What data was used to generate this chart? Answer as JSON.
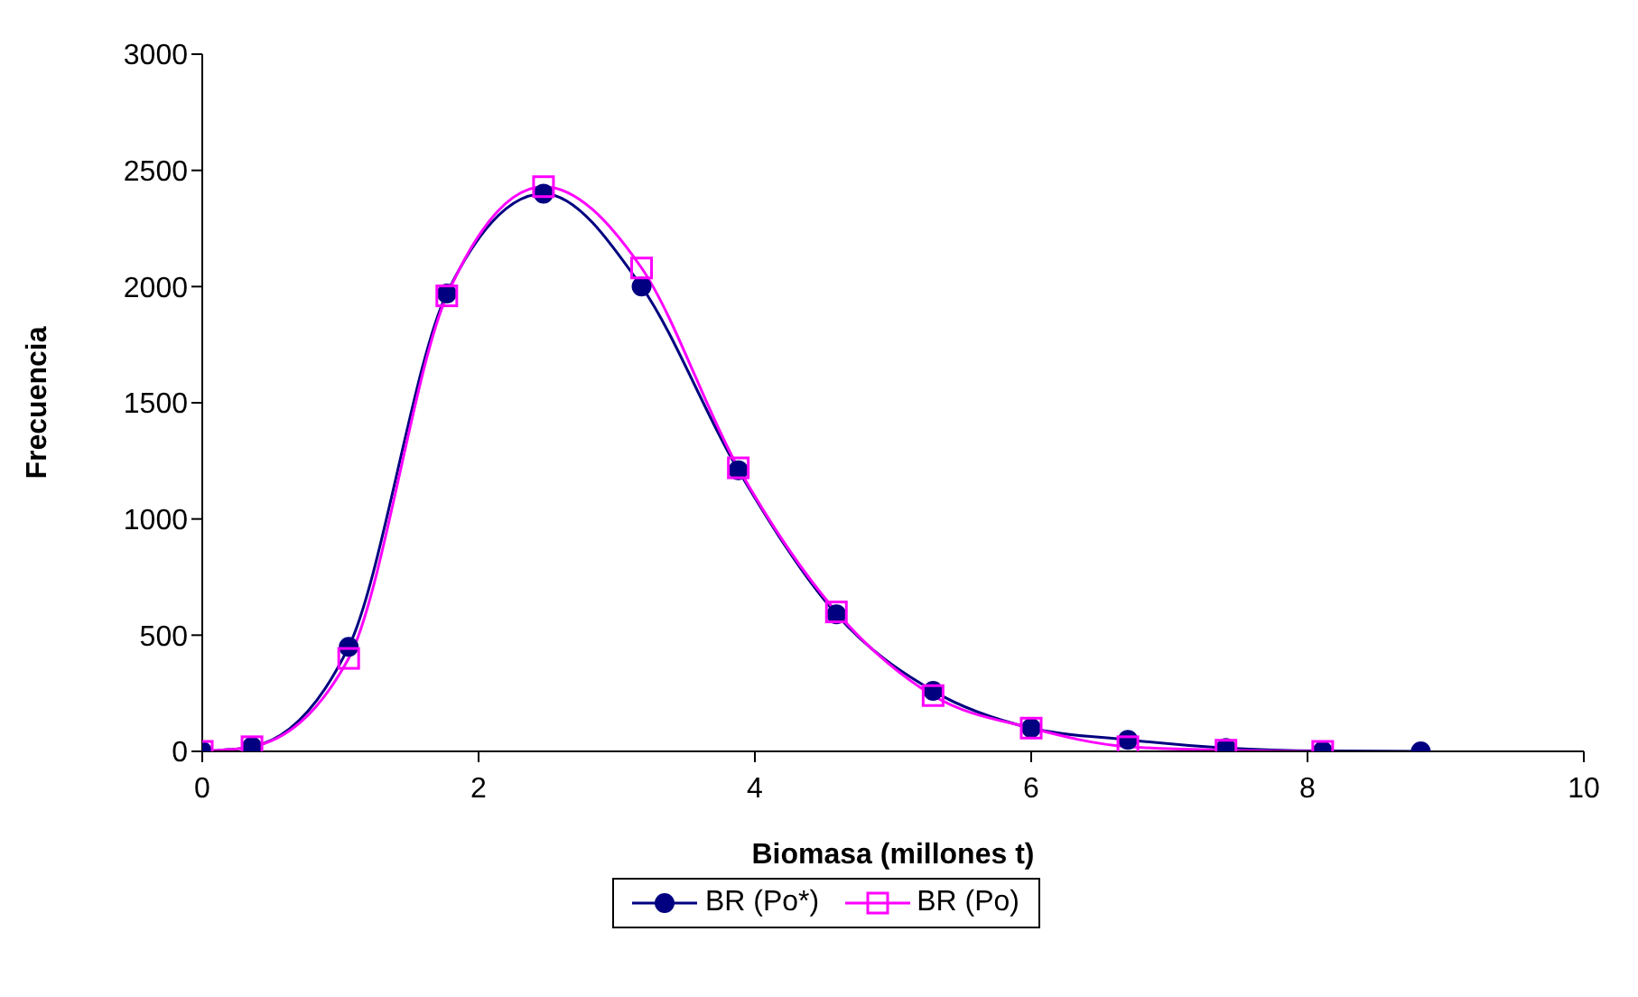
{
  "chart_data": {
    "type": "line",
    "xlabel": "Biomasa (millones t)",
    "ylabel": "Frecuencia",
    "xlim": [
      0,
      10
    ],
    "xticks": [
      0,
      2,
      4,
      6,
      8,
      10
    ],
    "ylim": [
      0,
      3000
    ],
    "yticks": [
      0,
      500,
      1000,
      1500,
      2000,
      2500,
      3000
    ],
    "grid": false,
    "legend": "bottom",
    "line_style": "solid",
    "series": [
      {
        "name": "BR (Po*)",
        "color": "#000080",
        "marker": "circle",
        "x": [
          0,
          0.36,
          1.06,
          1.77,
          2.47,
          3.18,
          3.88,
          4.59,
          5.29,
          6.0,
          6.7,
          7.41,
          8.11,
          8.82
        ],
        "values": [
          0,
          20,
          450,
          1970,
          2400,
          2000,
          1210,
          590,
          260,
          100,
          50,
          15,
          2,
          0
        ]
      },
      {
        "name": "BR (Po)",
        "color": "#ff00ff",
        "marker": "square",
        "x": [
          0,
          0.36,
          1.06,
          1.77,
          2.47,
          3.18,
          3.88,
          4.59,
          5.29,
          6.0,
          6.7,
          7.41,
          8.11
        ],
        "values": [
          0,
          20,
          400,
          1960,
          2430,
          2080,
          1220,
          600,
          240,
          100,
          20,
          5,
          0
        ]
      }
    ]
  }
}
